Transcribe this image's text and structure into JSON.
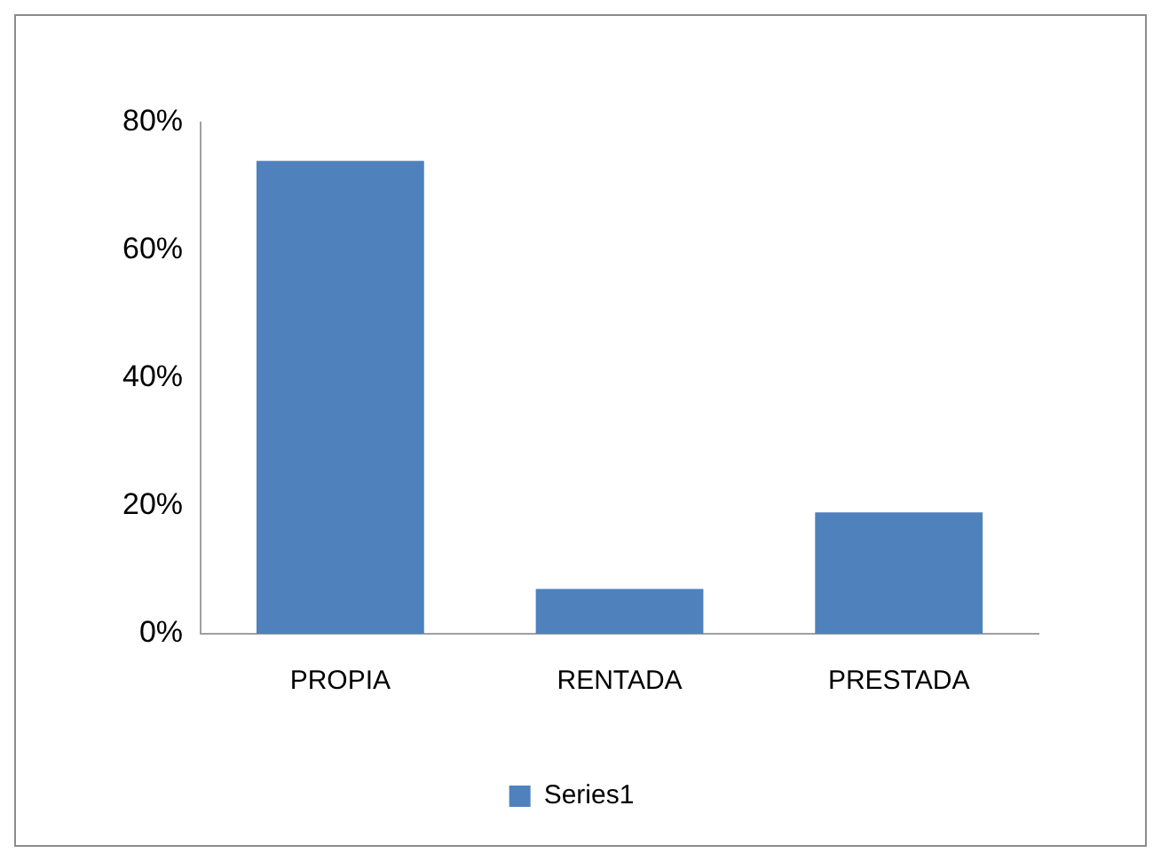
{
  "chart_data": {
    "type": "bar",
    "categories": [
      "PROPIA",
      "RENTADA",
      "PRESTADA"
    ],
    "series": [
      {
        "name": "Series1",
        "color": "#4f81bd",
        "values": [
          74,
          7,
          19
        ]
      }
    ],
    "ylim": [
      0,
      80
    ],
    "yticks": [
      {
        "value": 0,
        "label": "0%"
      },
      {
        "value": 20,
        "label": "20%"
      },
      {
        "value": 40,
        "label": "40%"
      },
      {
        "value": 60,
        "label": "60%"
      },
      {
        "value": 80,
        "label": "80%"
      }
    ],
    "grid": false,
    "legend": "bottom"
  }
}
